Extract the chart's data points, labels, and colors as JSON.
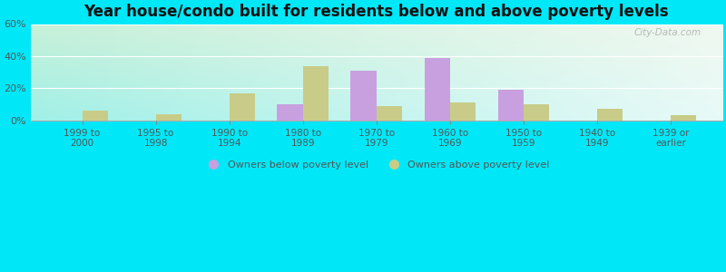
{
  "categories": [
    "1999 to\n2000",
    "1995 to\n1998",
    "1990 to\n1994",
    "1980 to\n1989",
    "1970 to\n1979",
    "1960 to\n1969",
    "1950 to\n1959",
    "1940 to\n1949",
    "1939 or\nearlier"
  ],
  "below_poverty": [
    0,
    0,
    0,
    10,
    31,
    39,
    19,
    0,
    0
  ],
  "above_poverty": [
    6,
    4,
    17,
    34,
    9,
    11,
    10,
    7,
    3
  ],
  "below_color": "#c8a0e0",
  "above_color": "#c8cc88",
  "title": "Year house/condo built for residents below and above poverty levels",
  "title_fontsize": 12,
  "legend_below": "Owners below poverty level",
  "legend_above": "Owners above poverty level",
  "ylim": [
    0,
    60
  ],
  "yticks": [
    0,
    20,
    40,
    60
  ],
  "ytick_labels": [
    "0%",
    "20%",
    "40%",
    "60%"
  ],
  "bg_topleft": "#c8f0d8",
  "bg_topright": "#f0f8f0",
  "bg_bottomleft": "#a0f0e8",
  "outer_background": "#00e8f8",
  "bar_width": 0.35,
  "watermark": "City-Data.com"
}
